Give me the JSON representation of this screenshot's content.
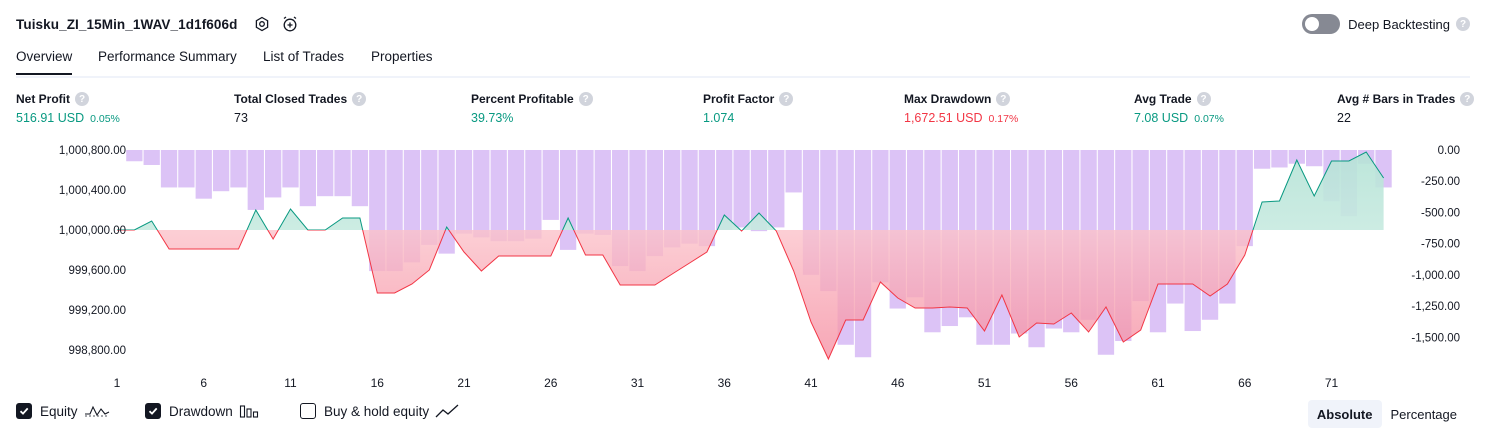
{
  "header": {
    "title": "Tuisku_ZI_15Min_1WAV_1d1f606d",
    "deep_backtesting_label": "Deep Backtesting",
    "deep_backtesting_enabled": false
  },
  "tabs": [
    {
      "label": "Overview",
      "active": true
    },
    {
      "label": "Performance Summary",
      "active": false
    },
    {
      "label": "List of Trades",
      "active": false
    },
    {
      "label": "Properties",
      "active": false
    }
  ],
  "metrics": {
    "net_profit": {
      "label": "Net Profit",
      "value": "516.91 USD",
      "pct": "0.05%"
    },
    "total_closed_trades": {
      "label": "Total Closed Trades",
      "value": "73"
    },
    "percent_profitable": {
      "label": "Percent Profitable",
      "value": "39.73%"
    },
    "profit_factor": {
      "label": "Profit Factor",
      "value": "1.074"
    },
    "max_drawdown": {
      "label": "Max Drawdown",
      "value": "1,672.51 USD",
      "pct": "0.17%"
    },
    "avg_trade": {
      "label": "Avg Trade",
      "value": "7.08 USD",
      "pct": "0.07%"
    },
    "avg_bars": {
      "label": "Avg # Bars in Trades",
      "value": "22"
    }
  },
  "colors": {
    "profit": "#089981",
    "loss": "#f23645",
    "drawdown_bar": "#d6b8f5",
    "equity_fill_up": "#d7f0ea",
    "equity_fill_down": "#fcd6d6"
  },
  "legend": {
    "equity": {
      "label": "Equity",
      "checked": true
    },
    "drawdown": {
      "label": "Drawdown",
      "checked": true
    },
    "buy_hold": {
      "label": "Buy & hold equity",
      "checked": false
    }
  },
  "mode": {
    "absolute": "Absolute",
    "percentage": "Percentage",
    "active": "Absolute"
  },
  "chart_data": {
    "type": "line",
    "x": [
      1,
      2,
      3,
      4,
      5,
      6,
      7,
      8,
      9,
      10,
      11,
      12,
      13,
      14,
      15,
      16,
      17,
      18,
      19,
      20,
      21,
      22,
      23,
      24,
      25,
      26,
      27,
      28,
      29,
      30,
      31,
      32,
      33,
      34,
      35,
      36,
      37,
      38,
      39,
      40,
      41,
      42,
      43,
      44,
      45,
      46,
      47,
      48,
      49,
      50,
      51,
      52,
      53,
      54,
      55,
      56,
      57,
      58,
      59,
      60,
      61,
      62,
      63,
      64,
      65,
      66,
      67,
      68,
      69,
      70,
      71,
      72,
      73,
      74
    ],
    "x_ticks": [
      1,
      6,
      11,
      16,
      21,
      26,
      31,
      36,
      41,
      46,
      51,
      56,
      61,
      66,
      71
    ],
    "y_left_ticks": [
      "1,000,800.00",
      "1,000,400.00",
      "1,000,000.00",
      "999,600.00",
      "999,200.00",
      "998,800.00"
    ],
    "y_left_range": [
      998700,
      1000800
    ],
    "y_right_ticks": [
      "0.00",
      "-250.00",
      "-500.00",
      "-750.00",
      "-1,000.00",
      "-1,250.00",
      "-1,500.00"
    ],
    "y_right_range": [
      -1650,
      0
    ],
    "series": [
      {
        "name": "Equity",
        "axis": "left",
        "values": [
          1000000,
          1000000,
          1000090,
          999810,
          999810,
          999810,
          999810,
          999810,
          1000200,
          999910,
          1000210,
          1000000,
          1000000,
          1000120,
          1000120,
          999370,
          999370,
          999460,
          999600,
          1000030,
          999780,
          999590,
          999740,
          999740,
          999740,
          999740,
          1000120,
          999750,
          999750,
          999450,
          999450,
          999450,
          999560,
          999670,
          999780,
          1000150,
          999990,
          1000170,
          999990,
          999590,
          999080,
          998710,
          999100,
          999100,
          999480,
          999320,
          999220,
          999220,
          999230,
          999220,
          998990,
          999350,
          998930,
          999070,
          999060,
          999170,
          998980,
          999230,
          998880,
          999000,
          999460,
          999460,
          999460,
          999340,
          999460,
          999750,
          1000280,
          1000290,
          1000700,
          1000340,
          1000690,
          1000690,
          1000780,
          1000520
        ]
      },
      {
        "name": "Drawdown",
        "axis": "right",
        "values": [
          0,
          -90,
          -120,
          -300,
          -300,
          -390,
          -330,
          -300,
          -480,
          -380,
          -300,
          -450,
          -370,
          -370,
          -450,
          -970,
          -970,
          -900,
          -760,
          -830,
          -670,
          -700,
          -730,
          -730,
          -710,
          -560,
          -800,
          -670,
          -680,
          -930,
          -970,
          -850,
          -780,
          -750,
          -770,
          -640,
          -620,
          -650,
          -620,
          -340,
          -1000,
          -1130,
          -1560,
          -1660,
          -1060,
          -1270,
          -1180,
          -1460,
          -1410,
          -1340,
          -1560,
          -1560,
          -1470,
          -1580,
          -1430,
          -1460,
          -1360,
          -1640,
          -1530,
          -1210,
          -1460,
          -1230,
          -1450,
          -1360,
          -1230,
          -770,
          -150,
          -140,
          -110,
          -130,
          -410,
          -530,
          -110,
          -300
        ]
      }
    ]
  }
}
